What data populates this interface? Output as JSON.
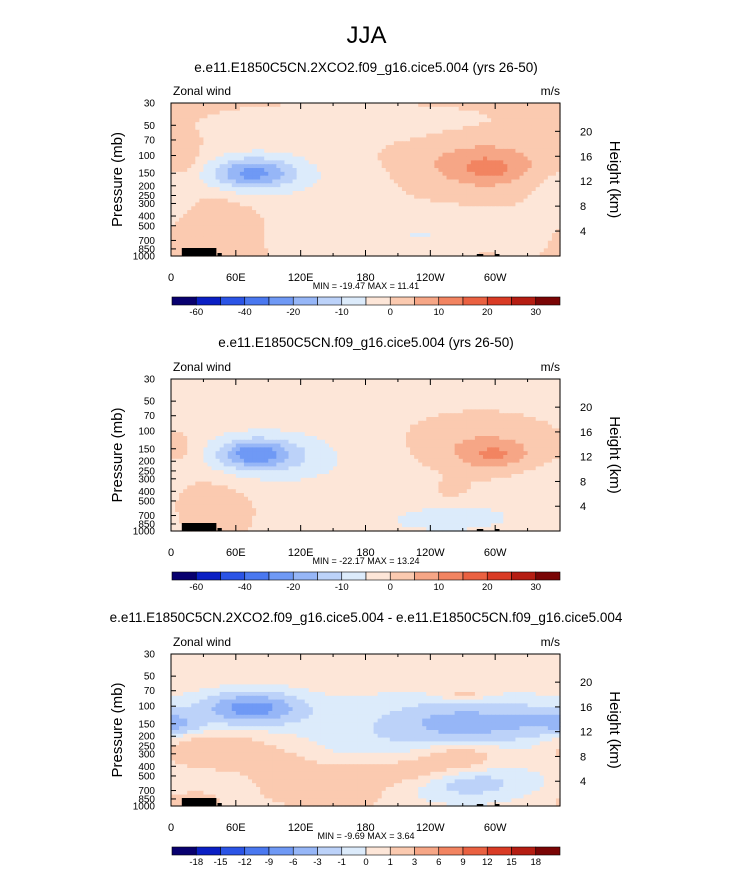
{
  "title": "JJA",
  "palette_abs": [
    "#08006f",
    "#0a1fc4",
    "#2b54e6",
    "#4a78f0",
    "#6f99f5",
    "#96b6f7",
    "#bcd2f9",
    "#dcebfb",
    "#fde6d8",
    "#fbcab0",
    "#f6a686",
    "#f28461",
    "#ea6141",
    "#d93b25",
    "#b51d12",
    "#7a0505"
  ],
  "palette_diff": [
    "#08006f",
    "#0a1fc4",
    "#2b54e6",
    "#4a78f0",
    "#6f99f5",
    "#96b6f7",
    "#bcd2f9",
    "#dcebfb",
    "#fde6d8",
    "#fbcab0",
    "#f6a686",
    "#f28461",
    "#ea6141",
    "#d93b25",
    "#b51d12",
    "#7a0505"
  ],
  "terrain_color": "#000000",
  "chart_data": [
    {
      "type": "heatmap",
      "title": "e.e11.E1850C5CN.2XCO2.f09_g16.cice5.004 (yrs 26-50)",
      "left_label": "Zonal wind",
      "right_label": "m/s",
      "ylabel": "Pressure (mb)",
      "ylabel_right": "Height (km)",
      "xticks": [
        "0",
        "60E",
        "120E",
        "180",
        "120W",
        "60W"
      ],
      "xtick_lon": [
        0,
        60,
        120,
        180,
        240,
        300
      ],
      "xlim": [
        0,
        360
      ],
      "yticks": [
        "30",
        "50",
        "70",
        "100",
        "150",
        "200",
        "250",
        "300",
        "400",
        "500",
        "700",
        "850",
        "1000"
      ],
      "ytick_p": [
        30,
        50,
        70,
        100,
        150,
        200,
        250,
        300,
        400,
        500,
        700,
        850,
        1000
      ],
      "ylim": [
        30,
        1000
      ],
      "right_ticks": [
        "20",
        "16",
        "12",
        "8",
        "4"
      ],
      "right_tick_km": [
        20,
        16,
        12,
        8,
        4
      ],
      "stats": "MIN = -19.47  MAX =  11.41",
      "colorbar_labels": [
        "-60",
        "-40",
        "-20",
        "-10",
        "0",
        "10",
        "20",
        "30"
      ],
      "colorbar_values": [
        -60,
        -40,
        -20,
        -10,
        0,
        10,
        20,
        30
      ],
      "colorbar_levels": [
        -70,
        -60,
        -50,
        -40,
        -30,
        -20,
        -15,
        -10,
        -5,
        0,
        5,
        10,
        15,
        20,
        25,
        30,
        35
      ],
      "min": -19.47,
      "max": 11.41,
      "base_value": 1,
      "features": [
        {
          "lon": 112,
          "p": 150,
          "wlon": 150,
          "wlnp": 0.55,
          "v": -4
        },
        {
          "lon": 75,
          "p": 150,
          "wlon": 35,
          "wlnp": 0.32,
          "v": -12
        },
        {
          "lon": 75,
          "p": 150,
          "wlon": 22,
          "wlnp": 0.2,
          "v": -8
        },
        {
          "lon": 285,
          "p": 120,
          "wlon": 80,
          "wlnp": 0.55,
          "v": 4
        },
        {
          "lon": 290,
          "p": 125,
          "wlon": 40,
          "wlnp": 0.33,
          "v": 6
        },
        {
          "lon": 295,
          "p": 140,
          "wlon": 18,
          "wlnp": 0.2,
          "v": 4
        },
        {
          "lon": 255,
          "p": 240,
          "wlon": 50,
          "wlnp": 0.25,
          "v": 1
        },
        {
          "lon": 15,
          "p": 125,
          "wlon": 10,
          "wlnp": 0.3,
          "v": 4
        },
        {
          "lon": 35,
          "p": 500,
          "wlon": 30,
          "wlnp": 0.55,
          "v": 5
        },
        {
          "lon": 190,
          "p": 600,
          "wlon": 90,
          "wlnp": 0.6,
          "v": -3.5
        },
        {
          "lon": 250,
          "p": 650,
          "wlon": 60,
          "wlnp": 0.35,
          "v": -3
        },
        {
          "lon": 180,
          "p": 50,
          "wlon": 110,
          "wlnp": 0.35,
          "v": -3
        },
        {
          "lon": 10,
          "p": 300,
          "wlon": 12,
          "wlnp": 0.5,
          "v": -3
        },
        {
          "lon": 350,
          "p": 300,
          "wlon": 20,
          "wlnp": 0.6,
          "v": -2
        },
        {
          "lon": 290,
          "p": 960,
          "wlon": 12,
          "wlnp": 0.1,
          "v": 2
        }
      ]
    },
    {
      "type": "heatmap",
      "title": "e.e11.E1850C5CN.f09_g16.cice5.004 (yrs 26-50)",
      "left_label": "Zonal wind",
      "right_label": "m/s",
      "ylabel": "Pressure (mb)",
      "ylabel_right": "Height (km)",
      "xticks": [
        "0",
        "60E",
        "120E",
        "180",
        "120W",
        "60W"
      ],
      "xtick_lon": [
        0,
        60,
        120,
        180,
        240,
        300
      ],
      "xlim": [
        0,
        360
      ],
      "yticks": [
        "30",
        "50",
        "70",
        "100",
        "150",
        "200",
        "250",
        "300",
        "400",
        "500",
        "700",
        "850",
        "1000"
      ],
      "ytick_p": [
        30,
        50,
        70,
        100,
        150,
        200,
        250,
        300,
        400,
        500,
        700,
        850,
        1000
      ],
      "ylim": [
        30,
        1000
      ],
      "right_ticks": [
        "20",
        "16",
        "12",
        "8",
        "4"
      ],
      "right_tick_km": [
        20,
        16,
        12,
        8,
        4
      ],
      "stats": "MIN = -22.17  MAX =  13.24",
      "colorbar_labels": [
        "-60",
        "-40",
        "-20",
        "-10",
        "0",
        "10",
        "20",
        "30"
      ],
      "colorbar_values": [
        -60,
        -40,
        -20,
        -10,
        0,
        10,
        20,
        30
      ],
      "colorbar_levels": [
        -70,
        -60,
        -50,
        -40,
        -30,
        -20,
        -15,
        -10,
        -5,
        0,
        5,
        10,
        15,
        20,
        25,
        30,
        35
      ],
      "min": -22.17,
      "max": 13.24,
      "base_value": -1,
      "features": [
        {
          "lon": 108,
          "p": 200,
          "wlon": 150,
          "wlnp": 0.6,
          "v": -4
        },
        {
          "lon": 80,
          "p": 170,
          "wlon": 35,
          "wlnp": 0.32,
          "v": -12
        },
        {
          "lon": 78,
          "p": 170,
          "wlon": 18,
          "wlnp": 0.18,
          "v": -10
        },
        {
          "lon": 290,
          "p": 150,
          "wlon": 75,
          "wlnp": 0.55,
          "v": 5
        },
        {
          "lon": 298,
          "p": 165,
          "wlon": 35,
          "wlnp": 0.3,
          "v": 6
        },
        {
          "lon": 300,
          "p": 175,
          "wlon": 15,
          "wlnp": 0.16,
          "v": 4
        },
        {
          "lon": 15,
          "p": 160,
          "wlon": 12,
          "wlnp": 0.3,
          "v": 3
        },
        {
          "lon": 35,
          "p": 500,
          "wlon": 30,
          "wlnp": 0.55,
          "v": 5
        },
        {
          "lon": 260,
          "p": 380,
          "wlon": 10,
          "wlnp": 0.15,
          "v": 4
        },
        {
          "lon": 270,
          "p": 700,
          "wlon": 40,
          "wlnp": 0.25,
          "v": -4
        },
        {
          "lon": 230,
          "p": 850,
          "wlon": 60,
          "wlnp": 0.25,
          "v": -3
        },
        {
          "lon": 100,
          "p": 30,
          "wlon": 150,
          "wlnp": 0.45,
          "v": -0.5
        },
        {
          "lon": 350,
          "p": 400,
          "wlon": 30,
          "wlnp": 0.8,
          "v": -1.5
        }
      ]
    },
    {
      "type": "heatmap",
      "title": "e.e11.E1850C5CN.2XCO2.f09_g16.cice5.004 - e.e11.E1850C5CN.f09_g16.cice5.004",
      "left_label": "Zonal wind",
      "right_label": "m/s",
      "ylabel": "Pressure (mb)",
      "ylabel_right": "Height (km)",
      "xticks": [
        "0",
        "60E",
        "120E",
        "180",
        "120W",
        "60W"
      ],
      "xtick_lon": [
        0,
        60,
        120,
        180,
        240,
        300
      ],
      "xlim": [
        0,
        360
      ],
      "yticks": [
        "30",
        "50",
        "70",
        "100",
        "150",
        "200",
        "250",
        "300",
        "400",
        "500",
        "700",
        "850",
        "1000"
      ],
      "ytick_p": [
        30,
        50,
        70,
        100,
        150,
        200,
        250,
        300,
        400,
        500,
        700,
        850,
        1000
      ],
      "ylim": [
        30,
        1000
      ],
      "right_ticks": [
        "20",
        "16",
        "12",
        "8",
        "4"
      ],
      "right_tick_km": [
        20,
        16,
        12,
        8,
        4
      ],
      "stats": "MIN =  -9.69  MAX =   3.64",
      "colorbar_labels": [
        "-18",
        "-15",
        "-12",
        "-9",
        "-6",
        "-3",
        "-1",
        "0",
        "1",
        "3",
        "6",
        "9",
        "12",
        "15",
        "18"
      ],
      "colorbar_values": [
        -18,
        -15,
        -12,
        -9,
        -6,
        -3,
        -1,
        0,
        1,
        3,
        6,
        9,
        12,
        15,
        18
      ],
      "colorbar_levels": [
        -21,
        -18,
        -15,
        -12,
        -9,
        -6,
        -3,
        -1,
        0,
        1,
        3,
        6,
        9,
        12,
        15,
        18,
        21
      ],
      "min": -9.69,
      "max": 3.64,
      "base_value": 0.5,
      "features": [
        {
          "lon": 180,
          "p": 250,
          "wlon": 260,
          "wlnp": 0.85,
          "v": -1.1
        },
        {
          "lon": 75,
          "p": 105,
          "wlon": 28,
          "wlnp": 0.22,
          "v": -6
        },
        {
          "lon": 75,
          "p": 105,
          "wlon": 16,
          "wlnp": 0.12,
          "v": -3
        },
        {
          "lon": 270,
          "p": 150,
          "wlon": 45,
          "wlnp": 0.35,
          "v": -3
        },
        {
          "lon": 270,
          "p": 150,
          "wlon": 25,
          "wlnp": 0.15,
          "v": -2
        },
        {
          "lon": 5,
          "p": 150,
          "wlon": 15,
          "wlnp": 0.15,
          "v": -2.5
        },
        {
          "lon": 340,
          "p": 140,
          "wlon": 30,
          "wlnp": 0.2,
          "v": -2
        },
        {
          "lon": 40,
          "p": 280,
          "wlon": 40,
          "wlnp": 0.35,
          "v": 2.5
        },
        {
          "lon": 270,
          "p": 300,
          "wlon": 30,
          "wlnp": 0.3,
          "v": 2.2
        },
        {
          "lon": 225,
          "p": 450,
          "wlon": 40,
          "wlnp": 0.25,
          "v": 1.8
        },
        {
          "lon": 275,
          "p": 580,
          "wlon": 30,
          "wlnp": 0.25,
          "v": -2
        },
        {
          "lon": 110,
          "p": 500,
          "wlon": 30,
          "wlnp": 0.5,
          "v": 1.8
        },
        {
          "lon": 168,
          "p": 650,
          "wlon": 25,
          "wlnp": 0.4,
          "v": 1.6
        },
        {
          "lon": 270,
          "p": 75,
          "wlon": 18,
          "wlnp": 0.1,
          "v": 1.5
        },
        {
          "lon": 20,
          "p": 900,
          "wlon": 20,
          "wlnp": 0.2,
          "v": 1.5
        }
      ]
    }
  ]
}
